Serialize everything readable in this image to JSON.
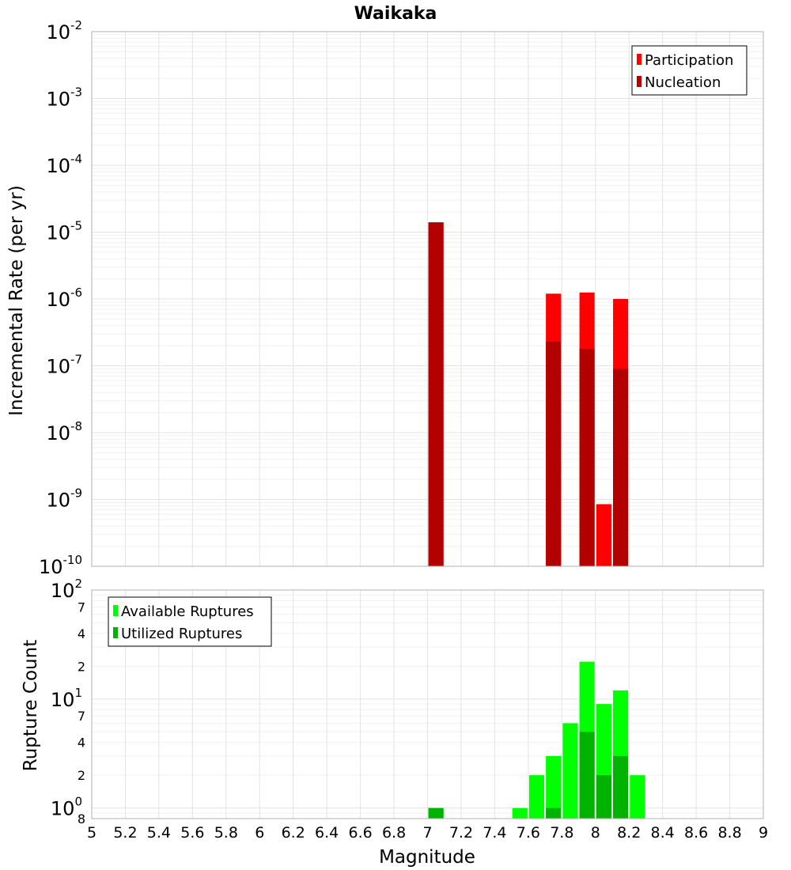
{
  "chart_data": [
    {
      "type": "bar",
      "title": "Waikaka",
      "xlabel": "",
      "ylabel": "Incremental Rate (per yr)",
      "y_scale": "log",
      "ylim": [
        1e-10,
        0.01
      ],
      "xlim": [
        5,
        9
      ],
      "grid": true,
      "legend_position": "top-right",
      "series": [
        {
          "name": "Participation",
          "color": "#ff0000",
          "x": [
            7.05,
            7.75,
            7.95,
            8.05,
            8.15
          ],
          "values": [
            1.4e-05,
            1.2e-06,
            1.25e-06,
            8.5e-10,
            1e-06
          ]
        },
        {
          "name": "Nucleation",
          "color": "#b30000",
          "x": [
            7.05,
            7.75,
            7.95,
            8.15
          ],
          "values": [
            1.4e-05,
            2.3e-07,
            1.8e-07,
            9e-08
          ]
        }
      ]
    },
    {
      "type": "bar",
      "title": "",
      "xlabel": "Magnitude",
      "ylabel": "Rupture Count",
      "y_scale": "log",
      "ylim": [
        0.8,
        100
      ],
      "xlim": [
        5,
        9
      ],
      "grid": true,
      "legend_position": "top-left",
      "x_ticks": [
        5,
        5.2,
        5.4,
        5.6,
        5.8,
        6,
        6.2,
        6.4,
        6.6,
        6.8,
        7,
        7.2,
        7.4,
        7.6,
        7.8,
        8,
        8.2,
        8.4,
        8.6,
        8.8,
        9
      ],
      "x_tick_labels": [
        "5",
        "5.2",
        "5.4",
        "5.6",
        "5.8",
        "6",
        "6.2",
        "6.4",
        "6.6",
        "6.8",
        "7",
        "7.2",
        "7.4",
        "7.6",
        "7.8",
        "8",
        "8.2",
        "8.4",
        "8.6",
        "8.8",
        "9"
      ],
      "y_minor_tick_labels": [
        "8",
        "2",
        "4",
        "7",
        "2",
        "4",
        "7"
      ],
      "series": [
        {
          "name": "Available Ruptures",
          "color": "#00ff00",
          "x": [
            7.05,
            7.55,
            7.65,
            7.75,
            7.85,
            7.95,
            8.05,
            8.15,
            8.25
          ],
          "values": [
            1,
            1,
            2,
            3,
            6,
            22,
            9,
            12,
            2
          ]
        },
        {
          "name": "Utilized Ruptures",
          "color": "#00b300",
          "x": [
            7.05,
            7.75,
            7.95,
            8.05,
            8.15
          ],
          "values": [
            1,
            1,
            5,
            2,
            3
          ]
        }
      ]
    }
  ]
}
